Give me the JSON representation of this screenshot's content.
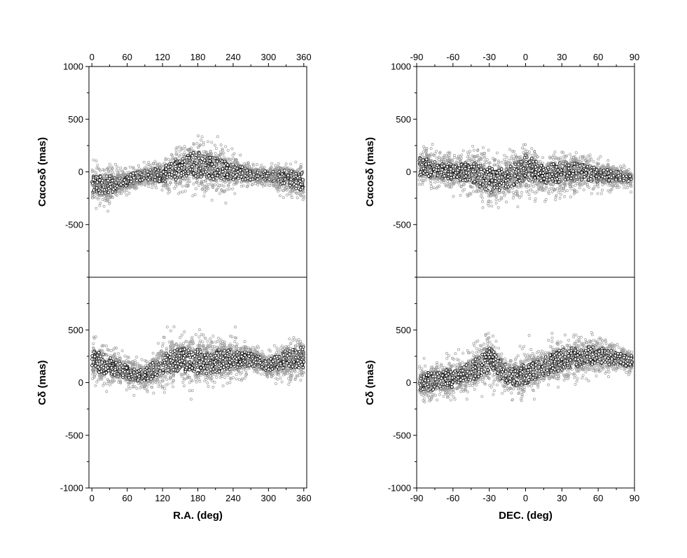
{
  "chart_data": [
    {
      "type": "scatter",
      "panel": "top-left",
      "xlabel": "",
      "ylabel": "Cαcosδ (mas)",
      "xlim": [
        -5,
        365
      ],
      "ylim": [
        -1000,
        1000
      ],
      "x_ticks": [
        0,
        60,
        120,
        180,
        240,
        300,
        360
      ],
      "x_ticks_top": [
        0,
        60,
        120,
        180,
        240,
        300,
        360
      ],
      "y_tick_labels": [
        "1000",
        "500",
        "0",
        "-500"
      ],
      "y_tick_values": [
        1000,
        500,
        0,
        -500
      ],
      "y_ticks_minor": [
        -1000,
        -750,
        -250,
        250,
        750
      ],
      "grid": false,
      "series": [
        {
          "marker": "open-circle",
          "density_profile": [
            {
              "x": 0,
              "center": -120,
              "spread": 160
            },
            {
              "x": 30,
              "center": -130,
              "spread": 170
            },
            {
              "x": 60,
              "center": -80,
              "spread": 90
            },
            {
              "x": 90,
              "center": -30,
              "spread": 90
            },
            {
              "x": 120,
              "center": -30,
              "spread": 130
            },
            {
              "x": 150,
              "center": 40,
              "spread": 200
            },
            {
              "x": 180,
              "center": 70,
              "spread": 220
            },
            {
              "x": 210,
              "center": 30,
              "spread": 200
            },
            {
              "x": 240,
              "center": 0,
              "spread": 150
            },
            {
              "x": 270,
              "center": -30,
              "spread": 90
            },
            {
              "x": 300,
              "center": -40,
              "spread": 80
            },
            {
              "x": 330,
              "center": -60,
              "spread": 140
            },
            {
              "x": 360,
              "center": -100,
              "spread": 160
            }
          ]
        }
      ]
    },
    {
      "type": "scatter",
      "panel": "top-right",
      "xlabel": "",
      "ylabel": "Cαcosδ (mas)",
      "xlim": [
        -90,
        90
      ],
      "ylim": [
        -1000,
        1000
      ],
      "x_ticks": [
        -90,
        -60,
        -30,
        0,
        30,
        60,
        90
      ],
      "x_ticks_top": [
        -90,
        -60,
        -30,
        0,
        30,
        60,
        90
      ],
      "y_tick_labels": [
        "1000",
        "500",
        "0",
        "-500"
      ],
      "y_tick_values": [
        1000,
        500,
        0,
        -500
      ],
      "y_ticks_minor": [
        -1000,
        -750,
        -250,
        250,
        750
      ],
      "grid": false,
      "series": [
        {
          "marker": "open-circle",
          "density_profile": [
            {
              "x": -88,
              "center": 50,
              "spread": 160
            },
            {
              "x": -60,
              "center": 0,
              "spread": 140
            },
            {
              "x": -45,
              "center": 0,
              "spread": 170
            },
            {
              "x": -30,
              "center": -80,
              "spread": 230
            },
            {
              "x": -15,
              "center": -60,
              "spread": 170
            },
            {
              "x": 0,
              "center": 40,
              "spread": 230
            },
            {
              "x": 15,
              "center": -30,
              "spread": 150
            },
            {
              "x": 30,
              "center": 0,
              "spread": 170
            },
            {
              "x": 45,
              "center": 0,
              "spread": 150
            },
            {
              "x": 60,
              "center": -30,
              "spread": 120
            },
            {
              "x": 75,
              "center": -40,
              "spread": 90
            },
            {
              "x": 88,
              "center": -50,
              "spread": 80
            }
          ]
        }
      ]
    },
    {
      "type": "scatter",
      "panel": "bottom-left",
      "xlabel": "R.A. (deg)",
      "ylabel": "Cδ (mas)",
      "xlim": [
        -5,
        365
      ],
      "ylim": [
        -1000,
        1000
      ],
      "x_ticks": [
        0,
        60,
        120,
        180,
        240,
        300,
        360
      ],
      "y_tick_labels": [
        "500",
        "0",
        "-500",
        "-1000"
      ],
      "y_tick_values": [
        500,
        0,
        -500,
        -1000
      ],
      "y_ticks_minor": [
        -750,
        -250,
        250,
        750,
        1000
      ],
      "grid": false,
      "series": [
        {
          "marker": "open-circle",
          "density_profile": [
            {
              "x": 0,
              "center": 220,
              "spread": 180
            },
            {
              "x": 30,
              "center": 150,
              "spread": 170
            },
            {
              "x": 60,
              "center": 100,
              "spread": 120
            },
            {
              "x": 90,
              "center": 60,
              "spread": 120
            },
            {
              "x": 120,
              "center": 180,
              "spread": 170
            },
            {
              "x": 150,
              "center": 220,
              "spread": 200
            },
            {
              "x": 180,
              "center": 200,
              "spread": 210
            },
            {
              "x": 210,
              "center": 200,
              "spread": 200
            },
            {
              "x": 240,
              "center": 220,
              "spread": 170
            },
            {
              "x": 270,
              "center": 220,
              "spread": 110
            },
            {
              "x": 300,
              "center": 160,
              "spread": 100
            },
            {
              "x": 330,
              "center": 220,
              "spread": 160
            },
            {
              "x": 360,
              "center": 240,
              "spread": 180
            }
          ]
        }
      ]
    },
    {
      "type": "scatter",
      "panel": "bottom-right",
      "xlabel": "DEC. (deg)",
      "ylabel": "Cδ (mas)",
      "xlim": [
        -90,
        90
      ],
      "ylim": [
        -1000,
        1000
      ],
      "x_ticks": [
        -90,
        -60,
        -30,
        0,
        30,
        60,
        90
      ],
      "y_tick_labels": [
        "500",
        "0",
        "-500",
        "-1000"
      ],
      "y_tick_values": [
        500,
        0,
        -500,
        -1000
      ],
      "y_ticks_minor": [
        -750,
        -250,
        250,
        750,
        1000
      ],
      "grid": false,
      "series": [
        {
          "marker": "open-circle",
          "density_profile": [
            {
              "x": -88,
              "center": 0,
              "spread": 160
            },
            {
              "x": -60,
              "center": 40,
              "spread": 160
            },
            {
              "x": -45,
              "center": 100,
              "spread": 170
            },
            {
              "x": -30,
              "center": 220,
              "spread": 220
            },
            {
              "x": -15,
              "center": 60,
              "spread": 160
            },
            {
              "x": 0,
              "center": 80,
              "spread": 190
            },
            {
              "x": 15,
              "center": 150,
              "spread": 160
            },
            {
              "x": 30,
              "center": 220,
              "spread": 180
            },
            {
              "x": 45,
              "center": 240,
              "spread": 170
            },
            {
              "x": 60,
              "center": 260,
              "spread": 150
            },
            {
              "x": 75,
              "center": 230,
              "spread": 110
            },
            {
              "x": 88,
              "center": 200,
              "spread": 100
            }
          ]
        }
      ]
    }
  ]
}
